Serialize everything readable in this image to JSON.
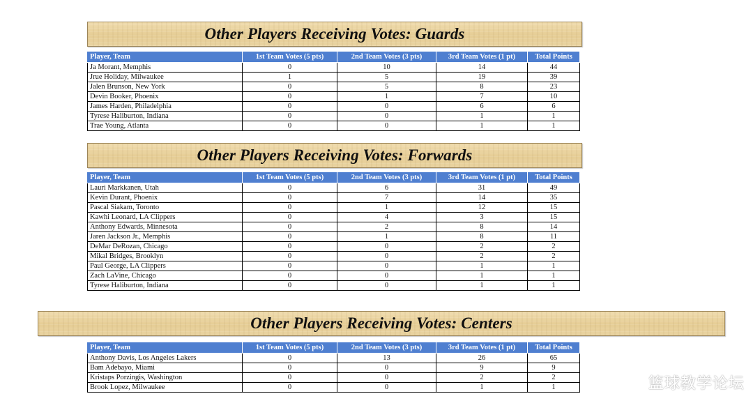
{
  "columns": [
    "Player, Team",
    "1st Team Votes (5 pts)",
    "2nd Team Votes (3 pts)",
    "3rd Team Votes (1 pt)",
    "Total Points"
  ],
  "sections": [
    {
      "title": "Other Players Receiving Votes: Guards",
      "rows": [
        [
          "Ja Morant, Memphis",
          "0",
          "10",
          "14",
          "44"
        ],
        [
          "Jrue Holiday, Milwaukee",
          "1",
          "5",
          "19",
          "39"
        ],
        [
          "Jalen Brunson, New York",
          "0",
          "5",
          "8",
          "23"
        ],
        [
          "Devin Booker, Phoenix",
          "0",
          "1",
          "7",
          "10"
        ],
        [
          "James Harden, Philadelphia",
          "0",
          "0",
          "6",
          "6"
        ],
        [
          "Tyrese Haliburton, Indiana",
          "0",
          "0",
          "1",
          "1"
        ],
        [
          "Trae Young, Atlanta",
          "0",
          "0",
          "1",
          "1"
        ]
      ]
    },
    {
      "title": "Other Players Receiving Votes: Forwards",
      "rows": [
        [
          "Lauri Markkanen, Utah",
          "0",
          "6",
          "31",
          "49"
        ],
        [
          "Kevin Durant, Phoenix",
          "0",
          "7",
          "14",
          "35"
        ],
        [
          "Pascal Siakam, Toronto",
          "0",
          "1",
          "12",
          "15"
        ],
        [
          "Kawhi Leonard, LA Clippers",
          "0",
          "4",
          "3",
          "15"
        ],
        [
          "Anthony Edwards, Minnesota",
          "0",
          "2",
          "8",
          "14"
        ],
        [
          "Jaren Jackson Jr., Memphis",
          "0",
          "1",
          "8",
          "11"
        ],
        [
          "DeMar DeRozan, Chicago",
          "0",
          "0",
          "2",
          "2"
        ],
        [
          "Mikal Bridges, Brooklyn",
          "0",
          "0",
          "2",
          "2"
        ],
        [
          "Paul George, LA Clippers",
          "0",
          "0",
          "1",
          "1"
        ],
        [
          "Zach LaVine, Chicago",
          "0",
          "0",
          "1",
          "1"
        ],
        [
          "Tyrese Haliburton, Indiana",
          "0",
          "0",
          "1",
          "1"
        ]
      ]
    },
    {
      "title": "Other Players Receiving Votes: Centers",
      "rows": [
        [
          "Anthony Davis, Los Angeles Lakers",
          "0",
          "13",
          "26",
          "65"
        ],
        [
          "Bam Adebayo, Miami",
          "0",
          "0",
          "9",
          "9"
        ],
        [
          "Kristaps Porzingis, Washington",
          "0",
          "0",
          "2",
          "2"
        ],
        [
          "Brook Lopez, Milwaukee",
          "0",
          "0",
          "1",
          "1"
        ]
      ]
    }
  ],
  "watermark": "篮球教学论坛"
}
